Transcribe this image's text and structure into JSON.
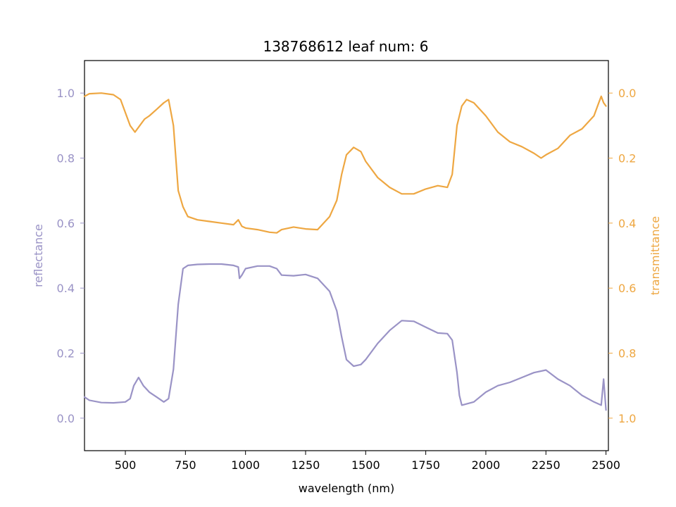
{
  "chart_data": {
    "type": "line",
    "title": "138768612 leaf num: 6",
    "xlabel": "wavelength (nm)",
    "ylabel_left": "reflectance",
    "ylabel_right": "transmittance",
    "xlim": [
      330,
      2510
    ],
    "ylim_left": [
      -0.1,
      1.1
    ],
    "ylim_right": [
      1.1,
      -0.1
    ],
    "right_axis_inverted": true,
    "grid": false,
    "x_ticks": [
      500,
      750,
      1000,
      1250,
      1500,
      1750,
      2000,
      2250,
      2500
    ],
    "x_tick_labels": [
      "500",
      "750",
      "1000",
      "1250",
      "1500",
      "1750",
      "2000",
      "2250",
      "2500"
    ],
    "y_left_ticks": [
      0.0,
      0.2,
      0.4,
      0.6,
      0.8,
      1.0
    ],
    "y_left_tick_labels": [
      "0.0",
      "0.2",
      "0.4",
      "0.6",
      "0.8",
      "1.0"
    ],
    "y_right_ticks": [
      0.0,
      0.2,
      0.4,
      0.6,
      0.8,
      1.0
    ],
    "y_right_tick_labels": [
      "0.0",
      "0.2",
      "0.4",
      "0.6",
      "0.8",
      "1.0"
    ],
    "colors": {
      "reflectance": "#9a93c6",
      "transmittance": "#eea742"
    },
    "series": [
      {
        "axis": "left",
        "color": "#9a93c6",
        "points": [
          [
            330,
            0.065
          ],
          [
            350,
            0.055
          ],
          [
            400,
            0.048
          ],
          [
            450,
            0.047
          ],
          [
            500,
            0.05
          ],
          [
            520,
            0.06
          ],
          [
            535,
            0.1
          ],
          [
            555,
            0.125
          ],
          [
            575,
            0.1
          ],
          [
            600,
            0.08
          ],
          [
            630,
            0.065
          ],
          [
            660,
            0.05
          ],
          [
            680,
            0.06
          ],
          [
            700,
            0.15
          ],
          [
            720,
            0.35
          ],
          [
            740,
            0.46
          ],
          [
            760,
            0.47
          ],
          [
            800,
            0.473
          ],
          [
            850,
            0.474
          ],
          [
            900,
            0.474
          ],
          [
            950,
            0.47
          ],
          [
            970,
            0.465
          ],
          [
            975,
            0.43
          ],
          [
            985,
            0.44
          ],
          [
            1000,
            0.46
          ],
          [
            1050,
            0.468
          ],
          [
            1100,
            0.468
          ],
          [
            1130,
            0.46
          ],
          [
            1150,
            0.44
          ],
          [
            1200,
            0.438
          ],
          [
            1250,
            0.442
          ],
          [
            1300,
            0.43
          ],
          [
            1350,
            0.39
          ],
          [
            1380,
            0.33
          ],
          [
            1400,
            0.25
          ],
          [
            1420,
            0.18
          ],
          [
            1450,
            0.16
          ],
          [
            1480,
            0.165
          ],
          [
            1500,
            0.18
          ],
          [
            1550,
            0.23
          ],
          [
            1600,
            0.27
          ],
          [
            1650,
            0.3
          ],
          [
            1700,
            0.298
          ],
          [
            1750,
            0.28
          ],
          [
            1800,
            0.262
          ],
          [
            1840,
            0.26
          ],
          [
            1860,
            0.24
          ],
          [
            1880,
            0.14
          ],
          [
            1890,
            0.07
          ],
          [
            1900,
            0.04
          ],
          [
            1950,
            0.05
          ],
          [
            2000,
            0.08
          ],
          [
            2050,
            0.1
          ],
          [
            2100,
            0.11
          ],
          [
            2150,
            0.125
          ],
          [
            2200,
            0.14
          ],
          [
            2250,
            0.148
          ],
          [
            2300,
            0.12
          ],
          [
            2350,
            0.1
          ],
          [
            2400,
            0.07
          ],
          [
            2450,
            0.05
          ],
          [
            2480,
            0.04
          ],
          [
            2490,
            0.12
          ],
          [
            2500,
            0.025
          ]
        ]
      },
      {
        "axis": "right",
        "color": "#eea742",
        "points": [
          [
            330,
            0.01
          ],
          [
            350,
            0.002
          ],
          [
            400,
            0.0
          ],
          [
            450,
            0.005
          ],
          [
            480,
            0.02
          ],
          [
            500,
            0.06
          ],
          [
            520,
            0.1
          ],
          [
            540,
            0.12
          ],
          [
            560,
            0.1
          ],
          [
            580,
            0.08
          ],
          [
            600,
            0.07
          ],
          [
            630,
            0.05
          ],
          [
            660,
            0.03
          ],
          [
            680,
            0.02
          ],
          [
            700,
            0.1
          ],
          [
            720,
            0.3
          ],
          [
            740,
            0.35
          ],
          [
            760,
            0.38
          ],
          [
            800,
            0.39
          ],
          [
            850,
            0.395
          ],
          [
            900,
            0.4
          ],
          [
            950,
            0.405
          ],
          [
            970,
            0.39
          ],
          [
            985,
            0.41
          ],
          [
            1000,
            0.415
          ],
          [
            1050,
            0.42
          ],
          [
            1100,
            0.428
          ],
          [
            1130,
            0.43
          ],
          [
            1150,
            0.42
          ],
          [
            1200,
            0.412
          ],
          [
            1250,
            0.418
          ],
          [
            1300,
            0.42
          ],
          [
            1350,
            0.38
          ],
          [
            1380,
            0.33
          ],
          [
            1400,
            0.25
          ],
          [
            1420,
            0.19
          ],
          [
            1450,
            0.167
          ],
          [
            1480,
            0.18
          ],
          [
            1500,
            0.21
          ],
          [
            1550,
            0.26
          ],
          [
            1600,
            0.29
          ],
          [
            1650,
            0.31
          ],
          [
            1700,
            0.31
          ],
          [
            1750,
            0.295
          ],
          [
            1800,
            0.285
          ],
          [
            1840,
            0.29
          ],
          [
            1860,
            0.25
          ],
          [
            1880,
            0.1
          ],
          [
            1900,
            0.04
          ],
          [
            1920,
            0.02
          ],
          [
            1950,
            0.03
          ],
          [
            2000,
            0.07
          ],
          [
            2050,
            0.12
          ],
          [
            2100,
            0.15
          ],
          [
            2150,
            0.165
          ],
          [
            2200,
            0.185
          ],
          [
            2230,
            0.2
          ],
          [
            2250,
            0.19
          ],
          [
            2300,
            0.17
          ],
          [
            2350,
            0.13
          ],
          [
            2400,
            0.11
          ],
          [
            2450,
            0.07
          ],
          [
            2470,
            0.03
          ],
          [
            2480,
            0.01
          ],
          [
            2490,
            0.03
          ],
          [
            2500,
            0.04
          ]
        ]
      }
    ]
  }
}
